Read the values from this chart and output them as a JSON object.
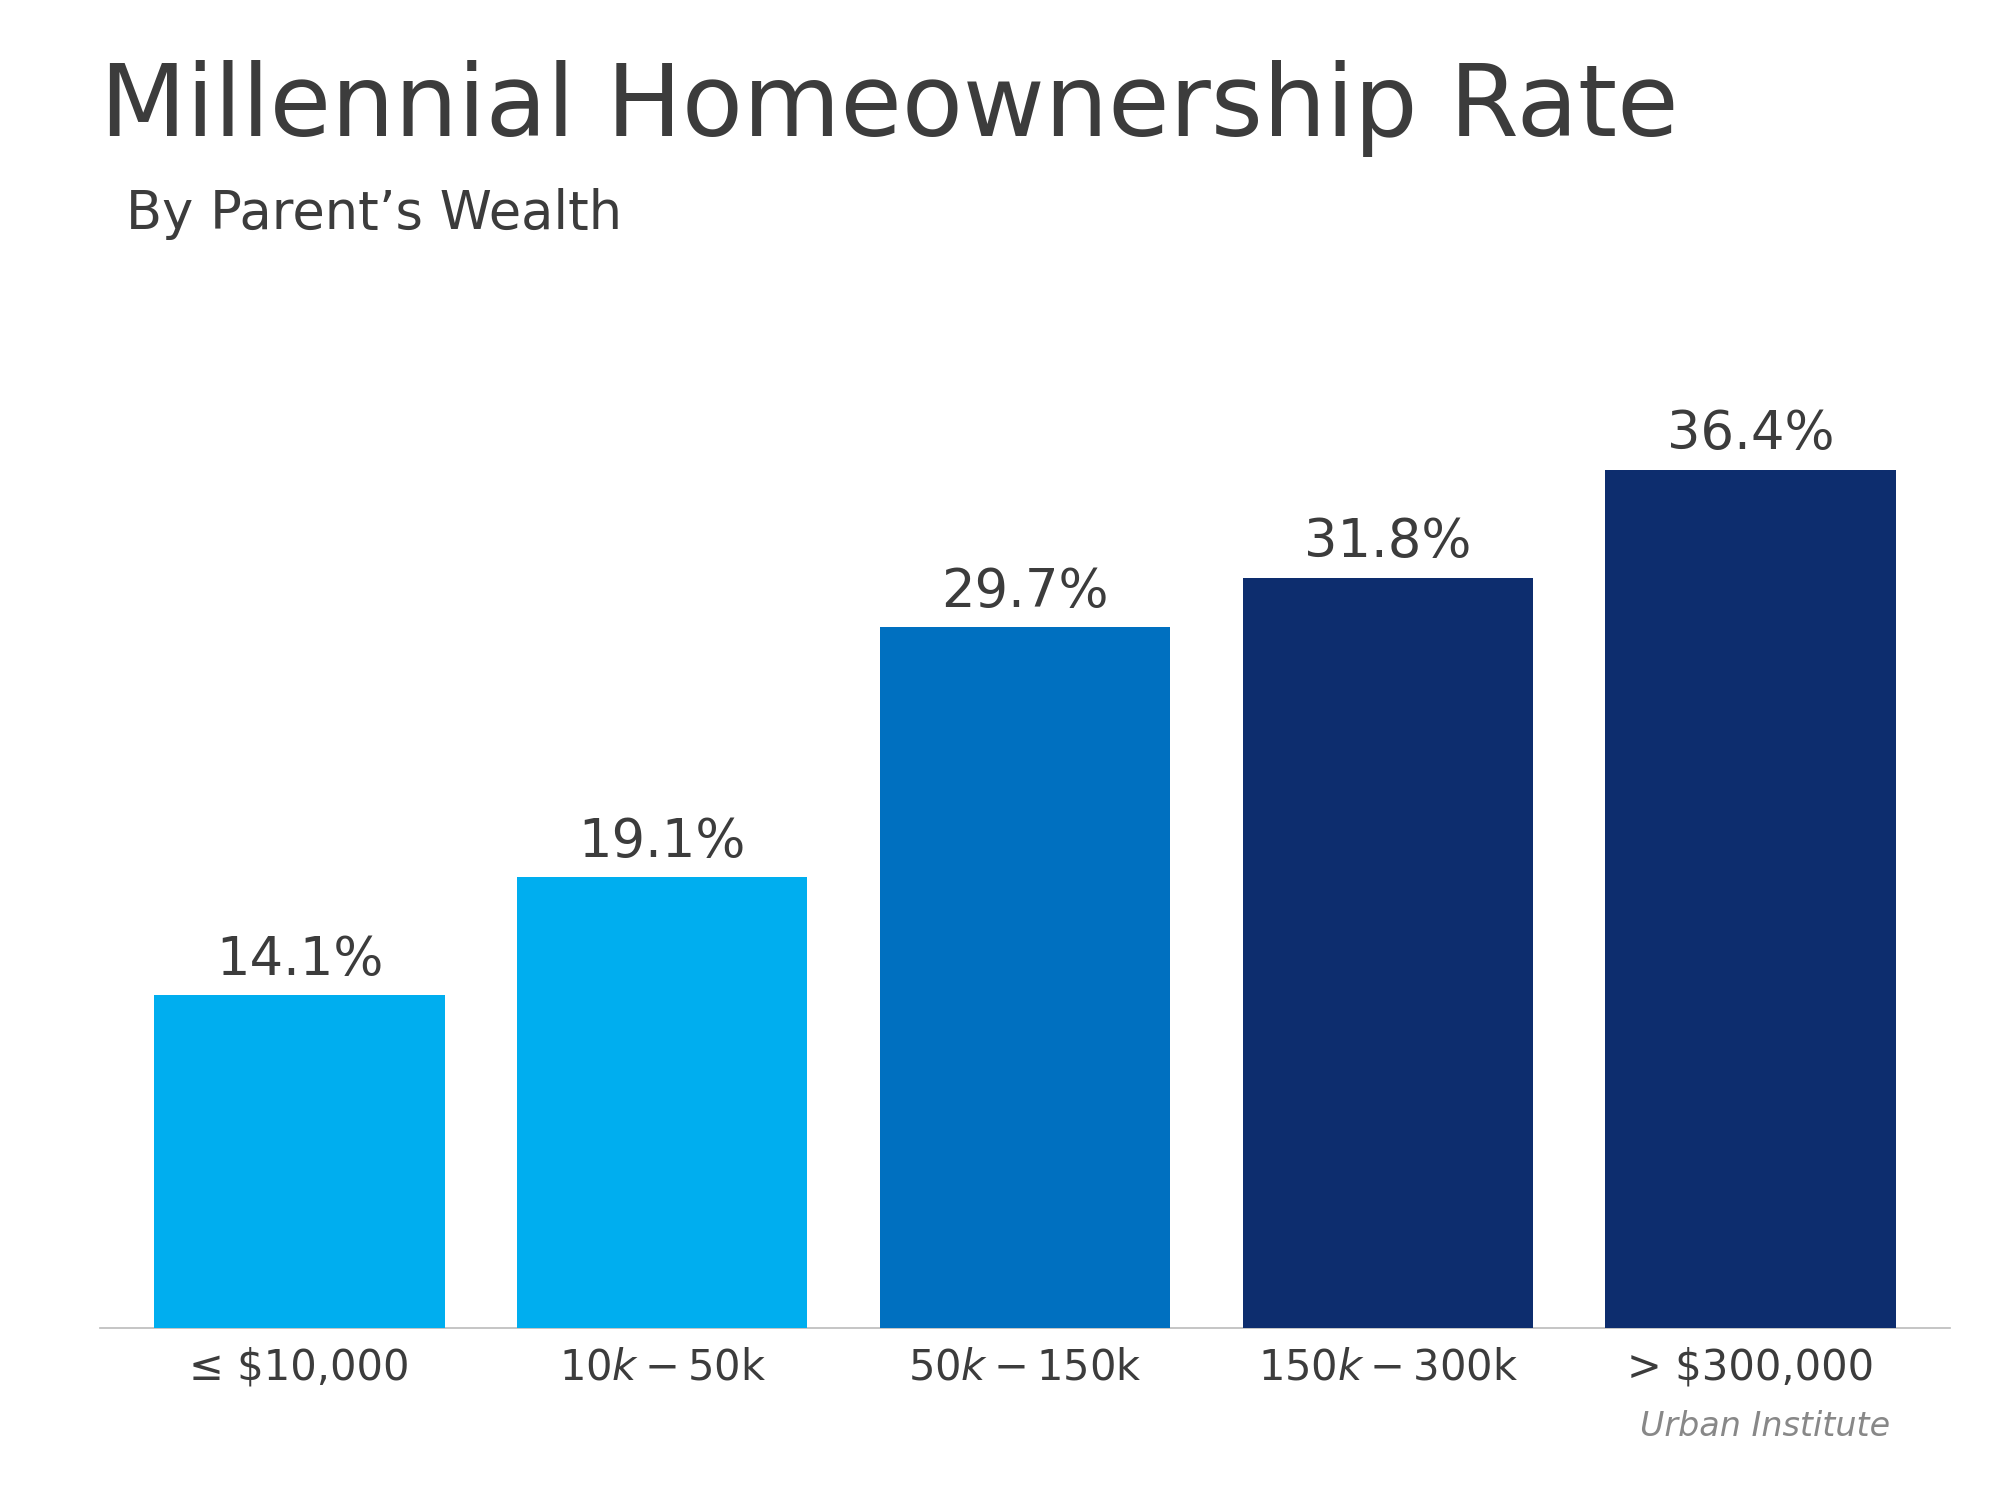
{
  "title": "Millennial Homeownership Rate",
  "subtitle": "By Parent’s Wealth",
  "categories": [
    "≤ $10,000",
    "$10k - $50k",
    "$50k - $150k",
    "$150k - $300k",
    "> $300,000"
  ],
  "categories_display": [
    "≤ $10,000",
    "$10k - $50k",
    "$50k - $150k",
    "$150k - $300k",
    "> $300,000"
  ],
  "values": [
    14.1,
    19.1,
    29.7,
    31.8,
    36.4
  ],
  "labels": [
    "14.1%",
    "19.1%",
    "29.7%",
    "31.8%",
    "36.4%"
  ],
  "bar_colors": [
    "#00AEEF",
    "#00AEEF",
    "#0070C0",
    "#0D2D6E",
    "#0D2D6E"
  ],
  "title_color": "#3C3C3C",
  "subtitle_color": "#3C3C3C",
  "label_color": "#3C3C3C",
  "tick_color": "#3C3C3C",
  "background_color": "#FFFFFF",
  "source_text": "Urban Institute",
  "ylim": [
    0,
    42
  ],
  "title_fontsize": 72,
  "subtitle_fontsize": 38,
  "label_fontsize": 38,
  "tick_fontsize": 30,
  "source_fontsize": 24
}
